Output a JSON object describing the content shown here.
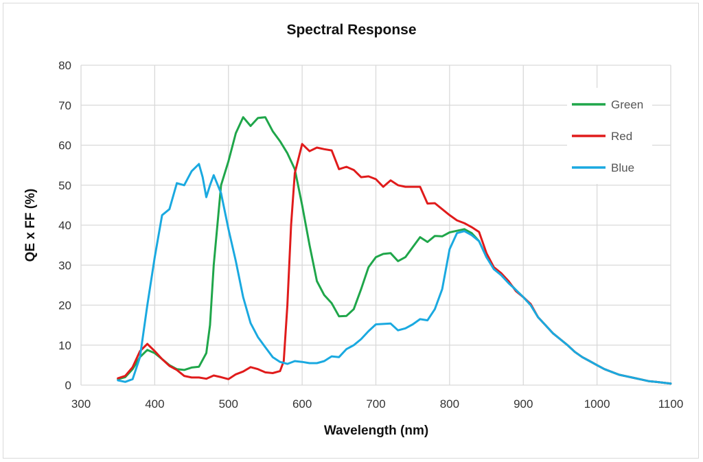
{
  "chart_data": {
    "type": "line",
    "title": "Spectral Response",
    "xlabel": "Wavelength (nm)",
    "ylabel": "QE x FF (%)",
    "xlim": [
      300,
      1100
    ],
    "ylim": [
      0,
      80
    ],
    "xticks": [
      300,
      400,
      500,
      600,
      700,
      800,
      900,
      1000,
      1100
    ],
    "yticks": [
      0,
      10,
      20,
      30,
      40,
      50,
      60,
      70,
      80
    ],
    "grid": true,
    "legend_position": "right",
    "series": [
      {
        "name": "Green",
        "color": "#1fa64a",
        "points": [
          [
            350,
            1.5
          ],
          [
            360,
            2
          ],
          [
            370,
            4
          ],
          [
            380,
            7
          ],
          [
            390,
            8.8
          ],
          [
            400,
            8
          ],
          [
            410,
            6.5
          ],
          [
            420,
            5
          ],
          [
            430,
            4
          ],
          [
            440,
            3.8
          ],
          [
            450,
            4.4
          ],
          [
            460,
            4.6
          ],
          [
            470,
            8
          ],
          [
            475,
            15
          ],
          [
            480,
            30
          ],
          [
            490,
            50
          ],
          [
            500,
            56
          ],
          [
            510,
            63
          ],
          [
            520,
            67
          ],
          [
            530,
            64.8
          ],
          [
            540,
            66.8
          ],
          [
            550,
            67
          ],
          [
            560,
            63.5
          ],
          [
            570,
            61
          ],
          [
            580,
            58
          ],
          [
            590,
            54
          ],
          [
            600,
            45
          ],
          [
            610,
            35
          ],
          [
            620,
            26
          ],
          [
            630,
            22.5
          ],
          [
            640,
            20.5
          ],
          [
            650,
            17.2
          ],
          [
            660,
            17.3
          ],
          [
            670,
            19
          ],
          [
            680,
            24
          ],
          [
            690,
            29.5
          ],
          [
            700,
            32
          ],
          [
            710,
            32.8
          ],
          [
            720,
            33
          ],
          [
            730,
            31
          ],
          [
            740,
            32
          ],
          [
            750,
            34.5
          ],
          [
            760,
            37
          ],
          [
            770,
            35.8
          ],
          [
            780,
            37.3
          ],
          [
            790,
            37.2
          ],
          [
            800,
            38.2
          ],
          [
            810,
            38.6
          ],
          [
            820,
            39
          ],
          [
            830,
            38
          ],
          [
            840,
            36
          ],
          [
            850,
            32
          ],
          [
            860,
            29.3
          ],
          [
            870,
            27.8
          ],
          [
            880,
            25.7
          ],
          [
            890,
            23.8
          ],
          [
            900,
            22
          ],
          [
            910,
            20
          ],
          [
            920,
            17
          ],
          [
            930,
            15
          ],
          [
            940,
            13
          ],
          [
            950,
            11.5
          ],
          [
            960,
            10
          ],
          [
            970,
            8.3
          ],
          [
            980,
            7
          ],
          [
            990,
            6
          ],
          [
            1000,
            5
          ],
          [
            1010,
            4
          ],
          [
            1020,
            3.3
          ],
          [
            1030,
            2.6
          ],
          [
            1040,
            2.2
          ],
          [
            1050,
            1.8
          ],
          [
            1060,
            1.4
          ],
          [
            1070,
            1
          ],
          [
            1080,
            0.8
          ],
          [
            1090,
            0.6
          ],
          [
            1100,
            0.4
          ]
        ]
      },
      {
        "name": "Red",
        "color": "#e01b1b",
        "points": [
          [
            350,
            1.7
          ],
          [
            360,
            2.3
          ],
          [
            370,
            4.5
          ],
          [
            380,
            8.5
          ],
          [
            390,
            10.3
          ],
          [
            400,
            8.5
          ],
          [
            410,
            6.5
          ],
          [
            420,
            4.8
          ],
          [
            430,
            3.8
          ],
          [
            440,
            2.3
          ],
          [
            450,
            1.9
          ],
          [
            460,
            1.9
          ],
          [
            470,
            1.6
          ],
          [
            480,
            2.4
          ],
          [
            490,
            2
          ],
          [
            500,
            1.5
          ],
          [
            510,
            2.7
          ],
          [
            520,
            3.4
          ],
          [
            530,
            4.5
          ],
          [
            540,
            4
          ],
          [
            550,
            3.2
          ],
          [
            560,
            3
          ],
          [
            570,
            3.5
          ],
          [
            575,
            6
          ],
          [
            580,
            20
          ],
          [
            585,
            40
          ],
          [
            590,
            53
          ],
          [
            600,
            60.3
          ],
          [
            610,
            58.5
          ],
          [
            620,
            59.4
          ],
          [
            630,
            59
          ],
          [
            640,
            58.7
          ],
          [
            650,
            54
          ],
          [
            660,
            54.6
          ],
          [
            670,
            53.8
          ],
          [
            680,
            52
          ],
          [
            690,
            52.2
          ],
          [
            700,
            51.5
          ],
          [
            710,
            49.6
          ],
          [
            720,
            51.2
          ],
          [
            730,
            50
          ],
          [
            740,
            49.6
          ],
          [
            750,
            49.6
          ],
          [
            760,
            49.6
          ],
          [
            770,
            45.4
          ],
          [
            780,
            45.5
          ],
          [
            790,
            44
          ],
          [
            800,
            42.5
          ],
          [
            810,
            41.2
          ],
          [
            820,
            40.5
          ],
          [
            830,
            39.5
          ],
          [
            840,
            38.3
          ],
          [
            850,
            33
          ],
          [
            860,
            29.5
          ],
          [
            870,
            28
          ],
          [
            880,
            26
          ],
          [
            890,
            23.5
          ],
          [
            900,
            22
          ],
          [
            910,
            20.3
          ],
          [
            920,
            17
          ],
          [
            930,
            15
          ],
          [
            940,
            13
          ],
          [
            950,
            11.5
          ],
          [
            960,
            10
          ],
          [
            970,
            8.3
          ],
          [
            980,
            7
          ],
          [
            990,
            6
          ],
          [
            1000,
            5
          ],
          [
            1010,
            4
          ],
          [
            1020,
            3.3
          ],
          [
            1030,
            2.6
          ],
          [
            1040,
            2.2
          ],
          [
            1050,
            1.8
          ],
          [
            1060,
            1.4
          ],
          [
            1070,
            1
          ],
          [
            1080,
            0.8
          ],
          [
            1090,
            0.6
          ],
          [
            1100,
            0.4
          ]
        ]
      },
      {
        "name": "Blue",
        "color": "#1aa9e0",
        "points": [
          [
            350,
            1.2
          ],
          [
            360,
            0.8
          ],
          [
            370,
            1.5
          ],
          [
            380,
            7
          ],
          [
            390,
            20
          ],
          [
            400,
            32
          ],
          [
            410,
            42.5
          ],
          [
            420,
            44
          ],
          [
            430,
            50.5
          ],
          [
            440,
            50
          ],
          [
            450,
            53.5
          ],
          [
            460,
            55.3
          ],
          [
            465,
            52
          ],
          [
            470,
            47
          ],
          [
            475,
            50
          ],
          [
            480,
            52.5
          ],
          [
            490,
            48
          ],
          [
            500,
            39
          ],
          [
            510,
            31
          ],
          [
            520,
            22
          ],
          [
            530,
            15.5
          ],
          [
            540,
            12
          ],
          [
            550,
            9.5
          ],
          [
            560,
            7
          ],
          [
            570,
            5.8
          ],
          [
            580,
            5.3
          ],
          [
            590,
            6
          ],
          [
            600,
            5.8
          ],
          [
            610,
            5.5
          ],
          [
            620,
            5.5
          ],
          [
            630,
            6
          ],
          [
            640,
            7.2
          ],
          [
            650,
            7
          ],
          [
            660,
            9
          ],
          [
            670,
            10
          ],
          [
            680,
            11.5
          ],
          [
            690,
            13.5
          ],
          [
            700,
            15.2
          ],
          [
            710,
            15.3
          ],
          [
            720,
            15.4
          ],
          [
            730,
            13.7
          ],
          [
            740,
            14.2
          ],
          [
            750,
            15.2
          ],
          [
            760,
            16.5
          ],
          [
            770,
            16.2
          ],
          [
            780,
            19
          ],
          [
            790,
            24
          ],
          [
            800,
            34
          ],
          [
            810,
            38
          ],
          [
            820,
            38.5
          ],
          [
            830,
            37.5
          ],
          [
            840,
            36
          ],
          [
            850,
            32
          ],
          [
            860,
            29
          ],
          [
            870,
            27.5
          ],
          [
            880,
            25.5
          ],
          [
            890,
            23.8
          ],
          [
            900,
            22
          ],
          [
            910,
            20
          ],
          [
            920,
            17
          ],
          [
            930,
            15
          ],
          [
            940,
            13
          ],
          [
            950,
            11.5
          ],
          [
            960,
            10
          ],
          [
            970,
            8.3
          ],
          [
            980,
            7
          ],
          [
            990,
            6
          ],
          [
            1000,
            5
          ],
          [
            1010,
            4
          ],
          [
            1020,
            3.3
          ],
          [
            1030,
            2.6
          ],
          [
            1040,
            2.2
          ],
          [
            1050,
            1.8
          ],
          [
            1060,
            1.4
          ],
          [
            1070,
            1
          ],
          [
            1080,
            0.8
          ],
          [
            1090,
            0.6
          ],
          [
            1100,
            0.4
          ]
        ]
      }
    ]
  }
}
